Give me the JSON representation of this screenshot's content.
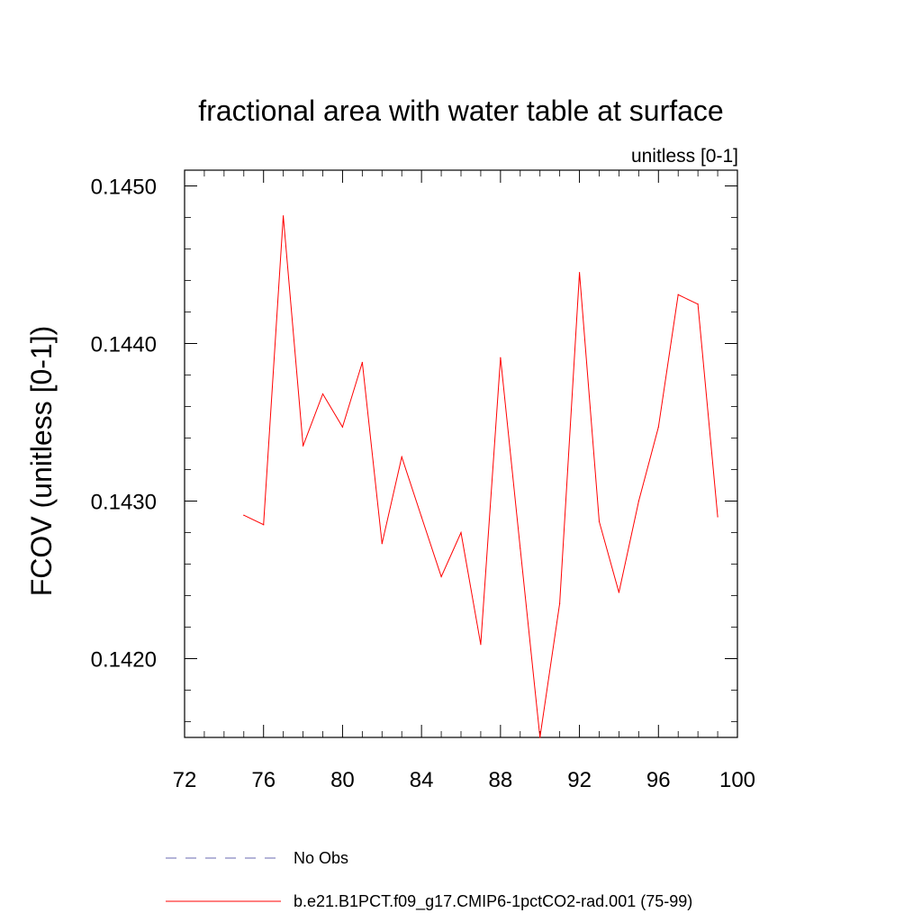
{
  "chart_data": {
    "type": "line",
    "title": "fractional area with water table at surface",
    "subtitle": "unitless [0-1]",
    "xlabel": "",
    "ylabel": "FCOV  (unitless [0-1])",
    "xlim": [
      72,
      100
    ],
    "ylim": [
      0.1415,
      0.1451
    ],
    "x_ticks": [
      72,
      76,
      80,
      84,
      88,
      92,
      96,
      100
    ],
    "x_tick_labels": [
      "72",
      "76",
      "80",
      "84",
      "88",
      "92",
      "96",
      "100"
    ],
    "y_ticks": [
      0.142,
      0.143,
      0.144,
      0.145
    ],
    "y_tick_labels": [
      "0.1420",
      "0.1430",
      "0.1440",
      "0.1450"
    ],
    "grid": false,
    "legend_position": "bottom",
    "legend": [
      {
        "label": "No Obs",
        "style": "dashed",
        "color": "#6a6ab0"
      },
      {
        "label": "b.e21.B1PCT.f09_g17.CMIP6-1pctCO2-rad.001 (75-99)",
        "style": "solid",
        "color": "#ff0000"
      }
    ],
    "series": [
      {
        "name": "b.e21.B1PCT.f09_g17.CMIP6-1pctCO2-rad.001 (75-99)",
        "color": "#ff0000",
        "x": [
          75,
          76,
          77,
          78,
          79,
          80,
          81,
          82,
          83,
          84,
          85,
          86,
          87,
          88,
          89,
          90,
          91,
          92,
          93,
          94,
          95,
          96,
          97,
          98,
          99
        ],
        "y": [
          0.14291,
          0.14285,
          0.14481,
          0.14335,
          0.14368,
          0.14347,
          0.14388,
          0.14273,
          0.14328,
          0.1429,
          0.14252,
          0.1428,
          0.14209,
          0.14391,
          0.1427,
          0.1415,
          0.14235,
          0.14445,
          0.14287,
          0.14242,
          0.143,
          0.14347,
          0.14431,
          0.14425,
          0.1429
        ]
      }
    ]
  }
}
